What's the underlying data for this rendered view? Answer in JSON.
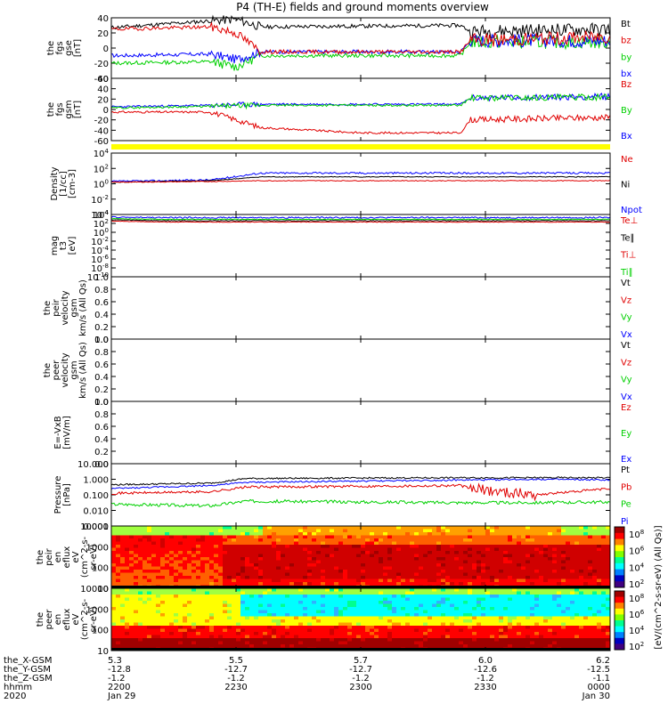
{
  "title": "P4 (TH-E) fields and ground moments overview",
  "colors": {
    "black": "#000000",
    "red": "#e00000",
    "green": "#00d000",
    "blue": "#0000ff",
    "yellow": "#ffff00"
  },
  "panels": [
    {
      "id": "fgs_gse",
      "ylabel": [
        "the",
        "fgs",
        "gse",
        "[nT]"
      ],
      "yticks": [
        "40",
        "20",
        "0",
        "-20",
        "-40"
      ],
      "legend": [
        "Bt",
        "bz",
        "by",
        "bx"
      ],
      "legend_colors": [
        "black",
        "red",
        "green",
        "blue"
      ]
    },
    {
      "id": "fgs_gsm",
      "ylabel": [
        "the",
        "fgs",
        "gsm",
        "[nT]"
      ],
      "yticks": [
        "60",
        "40",
        "20",
        "0",
        "-20",
        "-40",
        "-60"
      ],
      "legend": [
        "Bz",
        "By",
        "Bx"
      ],
      "legend_colors": [
        "red",
        "green",
        "blue"
      ]
    },
    {
      "id": "density",
      "ylabel": [
        "Density",
        "[1/cc]",
        "[cm-3]"
      ],
      "yticks": [
        "10^4",
        "10^2",
        "10^0",
        "10^-2",
        "10^-4"
      ],
      "legend": [
        "Ne",
        "Ni",
        "Npot"
      ],
      "legend_colors": [
        "red",
        "black",
        "blue"
      ]
    },
    {
      "id": "temp",
      "ylabel": [
        "mag",
        "t3",
        "[eV]"
      ],
      "yticks": [
        "10^4",
        "10^2",
        "10^0",
        "10^-2",
        "10^-4",
        "10^-6",
        "10^-8",
        "10^-10"
      ],
      "legend": [
        "Te⊥",
        "Te∥",
        "Ti⊥",
        "Ti∥"
      ],
      "legend_colors": [
        "red",
        "black",
        "red",
        "green"
      ]
    },
    {
      "id": "peir_vel",
      "ylabel": [
        "the",
        "peir",
        "velocity",
        "gsm",
        "km/s (All Qs)"
      ],
      "yticks": [
        "1.0",
        "0.8",
        "0.6",
        "0.4",
        "0.2",
        "0.0"
      ],
      "legend": [
        "Vt",
        "Vz",
        "Vy",
        "Vx"
      ],
      "legend_colors": [
        "black",
        "red",
        "green",
        "blue"
      ]
    },
    {
      "id": "peer_vel",
      "ylabel": [
        "the",
        "peer",
        "velocity",
        "gsm",
        "km/s (All Qs)"
      ],
      "yticks": [
        "1.0",
        "0.8",
        "0.6",
        "0.4",
        "0.2",
        "0.0"
      ],
      "legend": [
        "Vt",
        "Vz",
        "Vy",
        "Vx"
      ],
      "legend_colors": [
        "black",
        "red",
        "green",
        "blue"
      ]
    },
    {
      "id": "efield",
      "ylabel": [
        "E=-VxB",
        "[mV/m]"
      ],
      "yticks": [
        "1.0",
        "0.8",
        "0.6",
        "0.4",
        "0.2",
        "0.0"
      ],
      "legend": [
        "Ez",
        "Ey",
        "Ex"
      ],
      "legend_colors": [
        "red",
        "green",
        "blue"
      ]
    },
    {
      "id": "pressure",
      "ylabel": [
        "Pressure",
        "[nPa]"
      ],
      "yticks": [
        "10.000",
        "1.000",
        "0.100",
        "0.010",
        "0.001"
      ],
      "legend": [
        "Pt",
        "Pb",
        "Pe",
        "Pi"
      ],
      "legend_colors": [
        "black",
        "red",
        "green",
        "blue"
      ]
    },
    {
      "id": "peir_eflux",
      "ylabel": [
        "the",
        "peir",
        "en",
        "eflux",
        "eV",
        "(cm^2-s-",
        "sr-eV)"
      ],
      "yticks": [
        "10000",
        "1000",
        "100",
        "10"
      ]
    },
    {
      "id": "peer_eflux",
      "ylabel": [
        "the",
        "peer",
        "en",
        "eflux",
        "eV",
        "(cm^2-s-",
        "sr-eV)"
      ],
      "yticks": [
        "10000",
        "1000",
        "100",
        "10"
      ]
    }
  ],
  "colorbar": {
    "ticks": [
      "10^8",
      "10^6",
      "10^4",
      "10^2"
    ],
    "label": "[eV/(cm^2-s-sr-eV) (All Qs)]"
  },
  "footer": {
    "row_labels": [
      "the_X-GSM",
      "the_Y-GSM",
      "the_Z-GSM",
      "hhmm",
      "2020"
    ],
    "columns": [
      {
        "x_gsm": "5.3",
        "y_gsm": "-12.8",
        "z_gsm": "-1.2",
        "hhmm": "2200",
        "date": "Jan 29"
      },
      {
        "x_gsm": "5.5",
        "y_gsm": "-12.7",
        "z_gsm": "-1.2",
        "hhmm": "2230",
        "date": ""
      },
      {
        "x_gsm": "5.7",
        "y_gsm": "-12.7",
        "z_gsm": "-1.2",
        "hhmm": "2300",
        "date": ""
      },
      {
        "x_gsm": "6.0",
        "y_gsm": "-12.6",
        "z_gsm": "-1.2",
        "hhmm": "2330",
        "date": ""
      },
      {
        "x_gsm": "6.2",
        "y_gsm": "-12.5",
        "z_gsm": "-1.1",
        "hhmm": "0000",
        "date": "Jan 30"
      }
    ]
  },
  "chart_data": {
    "type": "line",
    "title": "P4 (TH-E) fields and ground moments overview",
    "x_range": [
      "2020-01-29 22:00",
      "2020-01-30 00:00"
    ],
    "series_summary": [
      {
        "panel": "fgs_gse",
        "name": "Bt",
        "approx_values_nT": [
          27,
          38,
          30,
          30,
          28,
          22,
          25
        ]
      },
      {
        "panel": "fgs_gse",
        "name": "bz",
        "approx_values_nT": [
          25,
          30,
          -5,
          -5,
          -5,
          10,
          15
        ]
      },
      {
        "panel": "fgs_gse",
        "name": "by",
        "approx_values_nT": [
          -20,
          -20,
          -10,
          -10,
          -10,
          10,
          10
        ]
      },
      {
        "panel": "fgs_gse",
        "name": "bx",
        "approx_values_nT": [
          -10,
          -5,
          -5,
          -5,
          -5,
          10,
          10
        ]
      },
      {
        "panel": "fgs_gsm",
        "name": "Bz",
        "approx_values_nT": [
          -5,
          -10,
          -40,
          -45,
          -45,
          -20,
          -15
        ]
      },
      {
        "panel": "fgs_gsm",
        "name": "By",
        "approx_values_nT": [
          5,
          5,
          10,
          10,
          10,
          25,
          25
        ]
      },
      {
        "panel": "fgs_gsm",
        "name": "Bx",
        "approx_values_nT": [
          5,
          5,
          10,
          10,
          10,
          25,
          28
        ]
      }
    ]
  }
}
